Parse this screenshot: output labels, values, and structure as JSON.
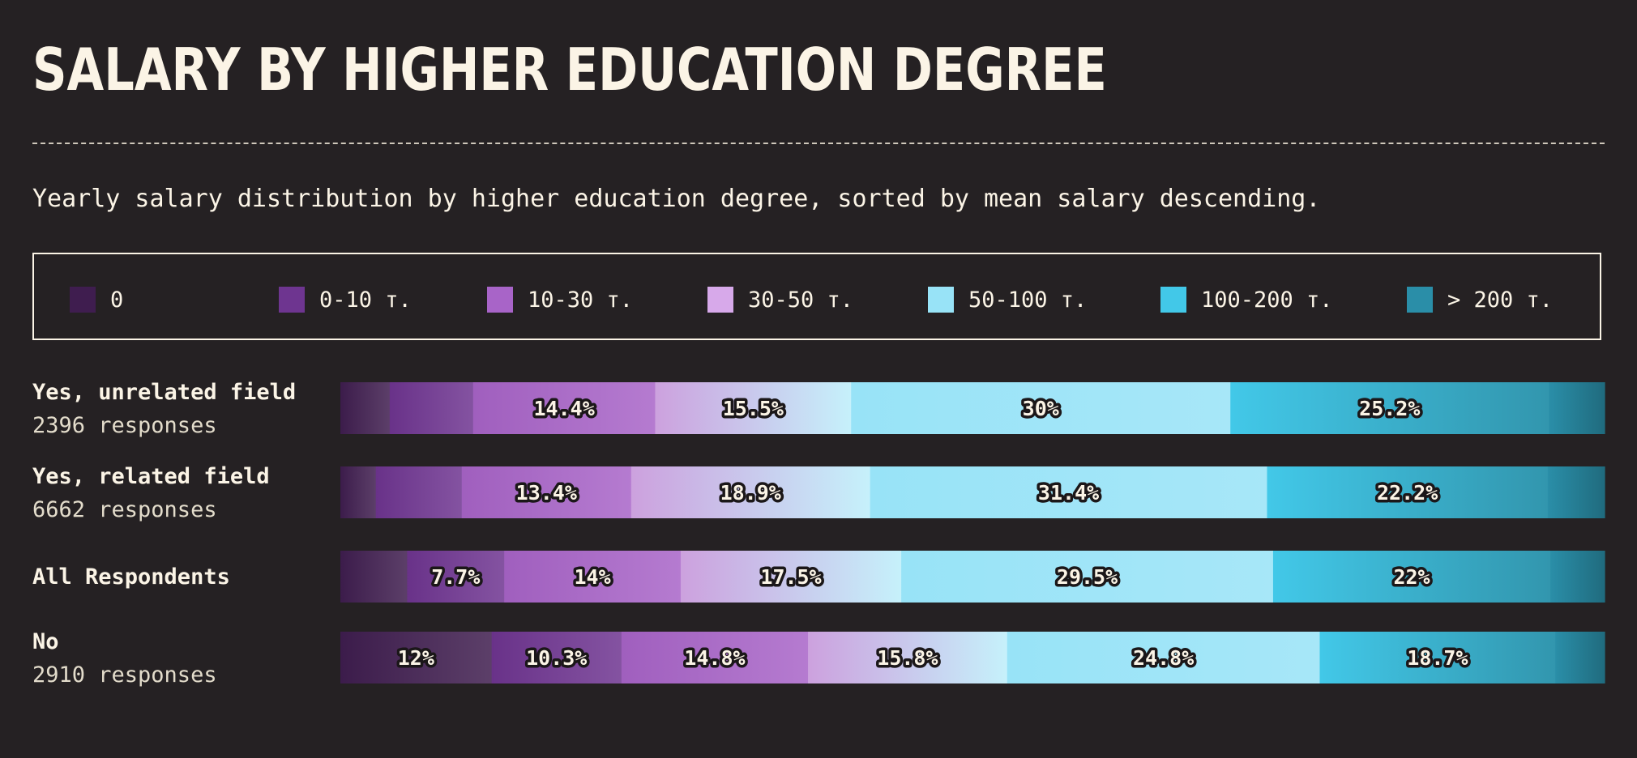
{
  "title": "SALARY BY HIGHER EDUCATION DEGREE",
  "subtitle": "Yearly salary distribution by higher education degree, sorted by mean salary descending.",
  "legend": [
    {
      "label": "0",
      "color": "#3f1d4f"
    },
    {
      "label": "0-10 т.",
      "color": "#6e3590"
    },
    {
      "label": "10-30 т.",
      "color": "#a864c8"
    },
    {
      "label": "30-50 т.",
      "color": "#d7a9ea"
    },
    {
      "label": "50-100 т.",
      "color": "#98e3f7"
    },
    {
      "label": "100-200 т.",
      "color": "#42c8e8"
    },
    {
      "label": "> 200 т.",
      "color": "#2a8ea8"
    }
  ],
  "rows": [
    {
      "name": "Yes, unrelated field",
      "responses": "2396 responses"
    },
    {
      "name": "Yes, related field",
      "responses": "6662 responses"
    },
    {
      "name": "All Respondents",
      "responses": ""
    },
    {
      "name": "No",
      "responses": "2910 responses"
    }
  ],
  "chart_data": {
    "type": "bar",
    "orientation": "horizontal",
    "stacked": true,
    "normalized_to": 100,
    "title": "SALARY BY HIGHER EDUCATION DEGREE",
    "subtitle": "Yearly salary distribution by higher education degree, sorted by mean salary descending.",
    "categories": [
      "Yes, unrelated field",
      "Yes, related field",
      "All Respondents",
      "No"
    ],
    "series": [
      {
        "name": "0",
        "values": [
          3.9,
          2.8,
          5.3,
          12.0
        ],
        "labels": [
          "",
          "",
          "",
          "12%"
        ]
      },
      {
        "name": "0-10 т.",
        "values": [
          6.6,
          6.8,
          7.7,
          10.3
        ],
        "labels": [
          "",
          "",
          "7.7%",
          "10.3%"
        ]
      },
      {
        "name": "10-30 т.",
        "values": [
          14.4,
          13.4,
          14.0,
          14.8
        ],
        "labels": [
          "14.4%",
          "13.4%",
          "14%",
          "14.8%"
        ]
      },
      {
        "name": "30-50 т.",
        "values": [
          15.5,
          18.9,
          17.5,
          15.8
        ],
        "labels": [
          "15.5%",
          "18.9%",
          "17.5%",
          "15.8%"
        ]
      },
      {
        "name": "50-100 т.",
        "values": [
          30.0,
          31.4,
          29.5,
          24.8
        ],
        "labels": [
          "30%",
          "31.4%",
          "29.5%",
          "24.8%"
        ]
      },
      {
        "name": "100-200 т.",
        "values": [
          25.2,
          22.2,
          22.0,
          18.7
        ],
        "labels": [
          "25.2%",
          "22.2%",
          "22%",
          "18.7%"
        ]
      },
      {
        "name": "> 200 т.",
        "values": [
          4.4,
          4.5,
          4.3,
          3.9
        ],
        "labels": [
          "",
          "",
          "",
          ""
        ]
      }
    ],
    "legend_position": "top",
    "grid": false
  }
}
